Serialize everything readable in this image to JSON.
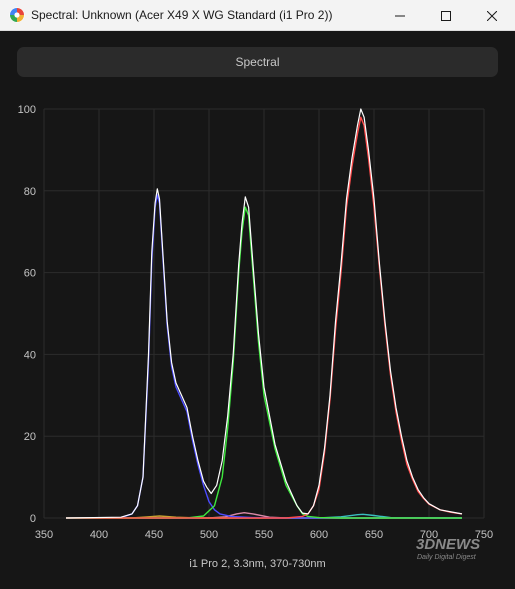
{
  "window": {
    "title": "Spectral: Unknown (Acer X49 X WG Standard (i1 Pro 2))",
    "controls": [
      "minimize",
      "maximize",
      "close"
    ]
  },
  "tab": {
    "label": "Spectral"
  },
  "caption": "i1 Pro 2, 3.3nm, 370-730nm",
  "watermark": {
    "line1": "3DNEWS",
    "line2": "Daily Digital Digest"
  },
  "colors": {
    "background": "#161616",
    "grid": "#2c2c2c",
    "white": "#ffffff",
    "blue": "#4b4bff",
    "green": "#3ee83e",
    "red": "#ff4a4a"
  },
  "chart_data": {
    "type": "line",
    "xlim": [
      350,
      750
    ],
    "ylim": [
      0,
      100
    ],
    "x_ticks": [
      350,
      400,
      450,
      500,
      550,
      600,
      650,
      700,
      750
    ],
    "y_ticks": [
      0,
      20,
      40,
      60,
      80,
      100
    ],
    "grid": true,
    "series": [
      {
        "color": "#ffffff",
        "points": [
          [
            370,
            0
          ],
          [
            420,
            0.2
          ],
          [
            430,
            1
          ],
          [
            435,
            3
          ],
          [
            440,
            10
          ],
          [
            445,
            40
          ],
          [
            448,
            65
          ],
          [
            451,
            77
          ],
          [
            453,
            80.5
          ],
          [
            455,
            78
          ],
          [
            458,
            65
          ],
          [
            462,
            48
          ],
          [
            466,
            38
          ],
          [
            470,
            33
          ],
          [
            475,
            30
          ],
          [
            480,
            27
          ],
          [
            485,
            20
          ],
          [
            490,
            14
          ],
          [
            495,
            9
          ],
          [
            498,
            7.5
          ],
          [
            502,
            6
          ],
          [
            507,
            8
          ],
          [
            512,
            14
          ],
          [
            517,
            25
          ],
          [
            522,
            40
          ],
          [
            527,
            62
          ],
          [
            530,
            72
          ],
          [
            533,
            78.5
          ],
          [
            536,
            76
          ],
          [
            540,
            62
          ],
          [
            545,
            45
          ],
          [
            550,
            32
          ],
          [
            560,
            18
          ],
          [
            570,
            9
          ],
          [
            580,
            3
          ],
          [
            585,
            1.2
          ],
          [
            590,
            1
          ],
          [
            595,
            3
          ],
          [
            600,
            8
          ],
          [
            605,
            17
          ],
          [
            610,
            30
          ],
          [
            615,
            48
          ],
          [
            620,
            62
          ],
          [
            625,
            78
          ],
          [
            630,
            88
          ],
          [
            635,
            96
          ],
          [
            638,
            100
          ],
          [
            641,
            98
          ],
          [
            645,
            90
          ],
          [
            650,
            78
          ],
          [
            655,
            62
          ],
          [
            660,
            48
          ],
          [
            665,
            36
          ],
          [
            670,
            27
          ],
          [
            675,
            20
          ],
          [
            680,
            14
          ],
          [
            685,
            10
          ],
          [
            690,
            7
          ],
          [
            695,
            5
          ],
          [
            700,
            3.5
          ],
          [
            710,
            2
          ],
          [
            720,
            1.5
          ],
          [
            730,
            1
          ]
        ]
      },
      {
        "color": "#4b4bff",
        "points": [
          [
            370,
            0
          ],
          [
            420,
            0.1
          ],
          [
            430,
            1
          ],
          [
            435,
            3
          ],
          [
            440,
            10
          ],
          [
            445,
            38
          ],
          [
            448,
            63
          ],
          [
            451,
            76
          ],
          [
            453,
            79
          ],
          [
            455,
            77
          ],
          [
            458,
            64
          ],
          [
            462,
            47
          ],
          [
            466,
            37
          ],
          [
            470,
            32
          ],
          [
            475,
            29
          ],
          [
            480,
            26
          ],
          [
            485,
            19
          ],
          [
            490,
            13
          ],
          [
            495,
            8
          ],
          [
            500,
            4
          ],
          [
            505,
            2
          ],
          [
            510,
            1
          ],
          [
            520,
            0.4
          ],
          [
            540,
            0.1
          ],
          [
            560,
            0
          ],
          [
            730,
            0
          ]
        ]
      },
      {
        "color": "#3ee83e",
        "points": [
          [
            370,
            0
          ],
          [
            480,
            0
          ],
          [
            495,
            0.5
          ],
          [
            505,
            3
          ],
          [
            512,
            10
          ],
          [
            517,
            22
          ],
          [
            522,
            38
          ],
          [
            527,
            60
          ],
          [
            530,
            70
          ],
          [
            533,
            76
          ],
          [
            536,
            74
          ],
          [
            540,
            60
          ],
          [
            545,
            43
          ],
          [
            550,
            30
          ],
          [
            560,
            17
          ],
          [
            570,
            8
          ],
          [
            580,
            3
          ],
          [
            585,
            1
          ],
          [
            590,
            0.4
          ],
          [
            600,
            0.1
          ],
          [
            620,
            0
          ],
          [
            730,
            0
          ]
        ]
      },
      {
        "color": "#ff4a4a",
        "points": [
          [
            370,
            0
          ],
          [
            570,
            0
          ],
          [
            585,
            0.4
          ],
          [
            590,
            1
          ],
          [
            595,
            3
          ],
          [
            600,
            7
          ],
          [
            605,
            16
          ],
          [
            610,
            29
          ],
          [
            615,
            46
          ],
          [
            620,
            60
          ],
          [
            625,
            76
          ],
          [
            630,
            86
          ],
          [
            635,
            94
          ],
          [
            638,
            98
          ],
          [
            641,
            96
          ],
          [
            645,
            88
          ],
          [
            650,
            76
          ],
          [
            655,
            61
          ],
          [
            660,
            47
          ],
          [
            665,
            35
          ],
          [
            670,
            26
          ],
          [
            675,
            19
          ],
          [
            680,
            13
          ],
          [
            685,
            9.5
          ],
          [
            690,
            6.5
          ],
          [
            695,
            4.8
          ],
          [
            700,
            3.4
          ],
          [
            710,
            2
          ],
          [
            720,
            1.4
          ],
          [
            730,
            1
          ]
        ]
      },
      {
        "color": "#d98aa8",
        "points": [
          [
            370,
            0
          ],
          [
            500,
            0
          ],
          [
            515,
            0.3
          ],
          [
            525,
            1
          ],
          [
            532,
            1.3
          ],
          [
            540,
            1
          ],
          [
            555,
            0.2
          ],
          [
            570,
            0
          ],
          [
            730,
            0
          ]
        ]
      },
      {
        "color": "#3ac0c0",
        "points": [
          [
            370,
            0
          ],
          [
            600,
            0
          ],
          [
            620,
            0.3
          ],
          [
            635,
            0.8
          ],
          [
            640,
            0.9
          ],
          [
            650,
            0.6
          ],
          [
            665,
            0.1
          ],
          [
            730,
            0
          ]
        ]
      },
      {
        "color": "#c8a030",
        "points": [
          [
            370,
            0
          ],
          [
            430,
            0
          ],
          [
            445,
            0.3
          ],
          [
            455,
            0.5
          ],
          [
            470,
            0.2
          ],
          [
            490,
            0
          ],
          [
            730,
            0
          ]
        ]
      }
    ]
  }
}
